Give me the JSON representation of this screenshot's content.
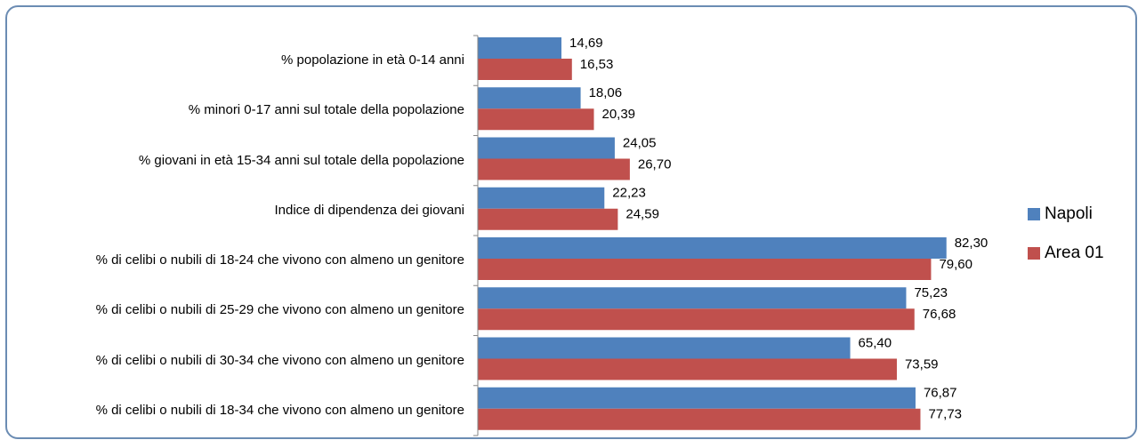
{
  "chart_data": {
    "type": "bar",
    "orientation": "horizontal",
    "categories": [
      "% popolazione in età 0-14 anni",
      "% minori 0-17 anni sul totale della popolazione",
      "% giovani in età 15-34 anni sul totale della popolazione",
      "Indice di dipendenza dei giovani",
      "% di celibi o nubili di 18-24 che vivono con almeno un genitore",
      "% di celibi o nubili di 25-29 che vivono con almeno un genitore",
      "% di celibi o nubili di 30-34 che vivono con almeno un genitore",
      "% di celibi o nubili di 18-34 che vivono con almeno un genitore"
    ],
    "series": [
      {
        "name": "Napoli",
        "color": "#4f81bd",
        "values": [
          14.69,
          18.06,
          24.05,
          22.23,
          82.3,
          75.23,
          65.4,
          76.87
        ],
        "value_labels": [
          "14,69",
          "18,06",
          "24,05",
          "22,23",
          "82,30",
          "75,23",
          "65,40",
          "76,87"
        ]
      },
      {
        "name": "Area 01",
        "color": "#c0504d",
        "values": [
          16.53,
          20.39,
          26.7,
          24.59,
          79.6,
          76.68,
          73.59,
          77.73
        ],
        "value_labels": [
          "16,53",
          "20,39",
          "26,70",
          "24,59",
          "79,60",
          "76,68",
          "73,59",
          "77,73"
        ]
      }
    ],
    "xlim": [
      0,
      90
    ],
    "legend": "right"
  }
}
